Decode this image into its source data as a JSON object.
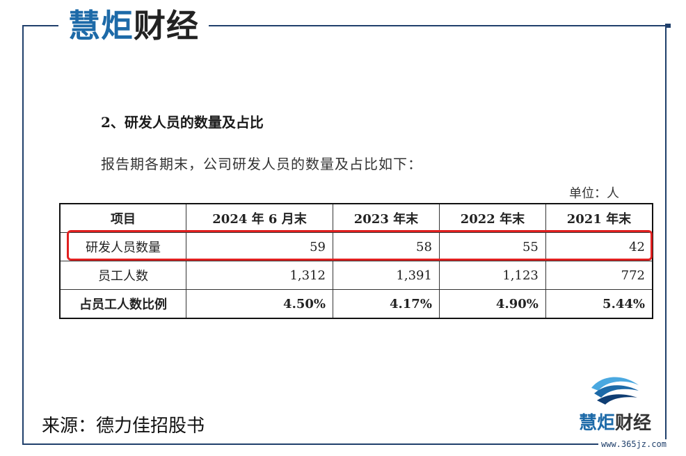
{
  "brand": {
    "part1": "慧炬",
    "part2": "财经"
  },
  "section_title": "2、研发人员的数量及占比",
  "intro": "报告期各期末，公司研发人员的数量及占比如下：",
  "unit": "单位：人",
  "table": {
    "headers": [
      "项目",
      "2024 年 6 月末",
      "2023 年末",
      "2022 年末",
      "2021 年末"
    ],
    "rows": [
      {
        "label": "研发人员数量",
        "values": [
          "59",
          "58",
          "55",
          "42"
        ]
      },
      {
        "label": "员工人数",
        "values": [
          "1,312",
          "1,391",
          "1,123",
          "772"
        ]
      },
      {
        "label": "占员工人数比例",
        "values": [
          "4.50%",
          "4.17%",
          "4.90%",
          "5.44%"
        ]
      }
    ]
  },
  "source": "来源：德力佳招股书",
  "watermark": "www.365jz.com",
  "colors": {
    "brand_blue": "#1d6aa8",
    "frame": "#1f3f6b",
    "highlight": "#e02020"
  }
}
